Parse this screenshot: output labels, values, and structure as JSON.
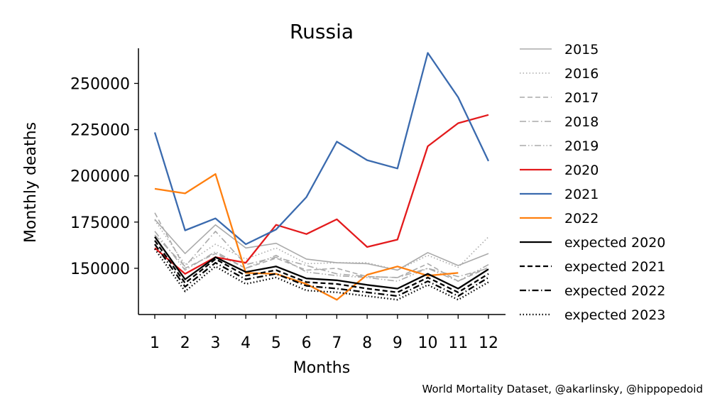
{
  "chart_data": {
    "type": "line",
    "title": "Russia",
    "xlabel": "Months",
    "ylabel": "Monthly deaths",
    "categories": [
      1,
      2,
      3,
      4,
      5,
      6,
      7,
      8,
      9,
      10,
      11,
      12
    ],
    "ylim": [
      125000,
      269000
    ],
    "yticks": [
      150000,
      175000,
      200000,
      225000,
      250000
    ],
    "grid": false,
    "legend_position": "right, outside plot",
    "series": [
      {
        "name": "2015",
        "color": "#aaaaaa",
        "dash": "solid",
        "values": [
          176500,
          158000,
          173500,
          161000,
          163500,
          155000,
          153000,
          152500,
          149000,
          158500,
          151500,
          158000
        ]
      },
      {
        "name": "2016",
        "color": "#aaaaaa",
        "dash": "dotted",
        "values": [
          176000,
          152000,
          163000,
          155000,
          161000,
          152500,
          153000,
          153000,
          149000,
          157000,
          150500,
          167000
        ]
      },
      {
        "name": "2017",
        "color": "#aaaaaa",
        "dash": "dashed",
        "values": [
          180000,
          150000,
          158000,
          150000,
          155500,
          149000,
          150000,
          145500,
          145000,
          152500,
          143000,
          150500
        ]
      },
      {
        "name": "2018",
        "color": "#aaaaaa",
        "dash": "dashdot",
        "values": [
          168000,
          151000,
          170000,
          152000,
          156000,
          151500,
          147000,
          145500,
          145000,
          150000,
          145500,
          150000
        ]
      },
      {
        "name": "2019",
        "color": "#aaaaaa",
        "dash": "dashdotdot",
        "values": [
          170000,
          149000,
          159000,
          150000,
          157000,
          148000,
          146000,
          145000,
          143000,
          150000,
          143000,
          152000
        ]
      },
      {
        "name": "2020",
        "color": "#e31a1c",
        "dash": "solid",
        "values": [
          161000,
          147000,
          156000,
          153000,
          173500,
          168500,
          176500,
          161500,
          165500,
          216000,
          228500,
          233000
        ]
      },
      {
        "name": "2021",
        "color": "#3a6aae",
        "dash": "solid",
        "values": [
          223500,
          170500,
          177000,
          163000,
          171000,
          188500,
          218500,
          208500,
          204000,
          266500,
          242500,
          208000
        ]
      },
      {
        "name": "2022",
        "color": "#ff7f0e",
        "dash": "solid",
        "values": [
          193000,
          190500,
          201000,
          147500,
          147000,
          141500,
          133000,
          146500,
          151000,
          146000,
          147500,
          null
        ]
      },
      {
        "name": "expected 2020",
        "color": "#000000",
        "dash": "solid",
        "values": [
          167000,
          144000,
          156000,
          148000,
          151000,
          144500,
          143500,
          141000,
          139000,
          147000,
          139000,
          149500
        ]
      },
      {
        "name": "expected 2021",
        "color": "#000000",
        "dash": "dashed",
        "values": [
          165000,
          142000,
          155000,
          146000,
          149000,
          142500,
          141500,
          139000,
          137000,
          145000,
          137000,
          147000
        ]
      },
      {
        "name": "expected 2022",
        "color": "#000000",
        "dash": "dashdot",
        "values": [
          163000,
          140000,
          153000,
          144000,
          147000,
          140500,
          139000,
          137000,
          135000,
          143000,
          135000,
          145000
        ]
      },
      {
        "name": "expected 2023",
        "color": "#000000",
        "dash": "dotted",
        "values": [
          160500,
          137500,
          151000,
          141500,
          145000,
          138000,
          137000,
          135000,
          133000,
          141000,
          133000,
          142500
        ]
      }
    ]
  },
  "credit": "World Mortality Dataset, @akarlinsky, @hippopedoid"
}
